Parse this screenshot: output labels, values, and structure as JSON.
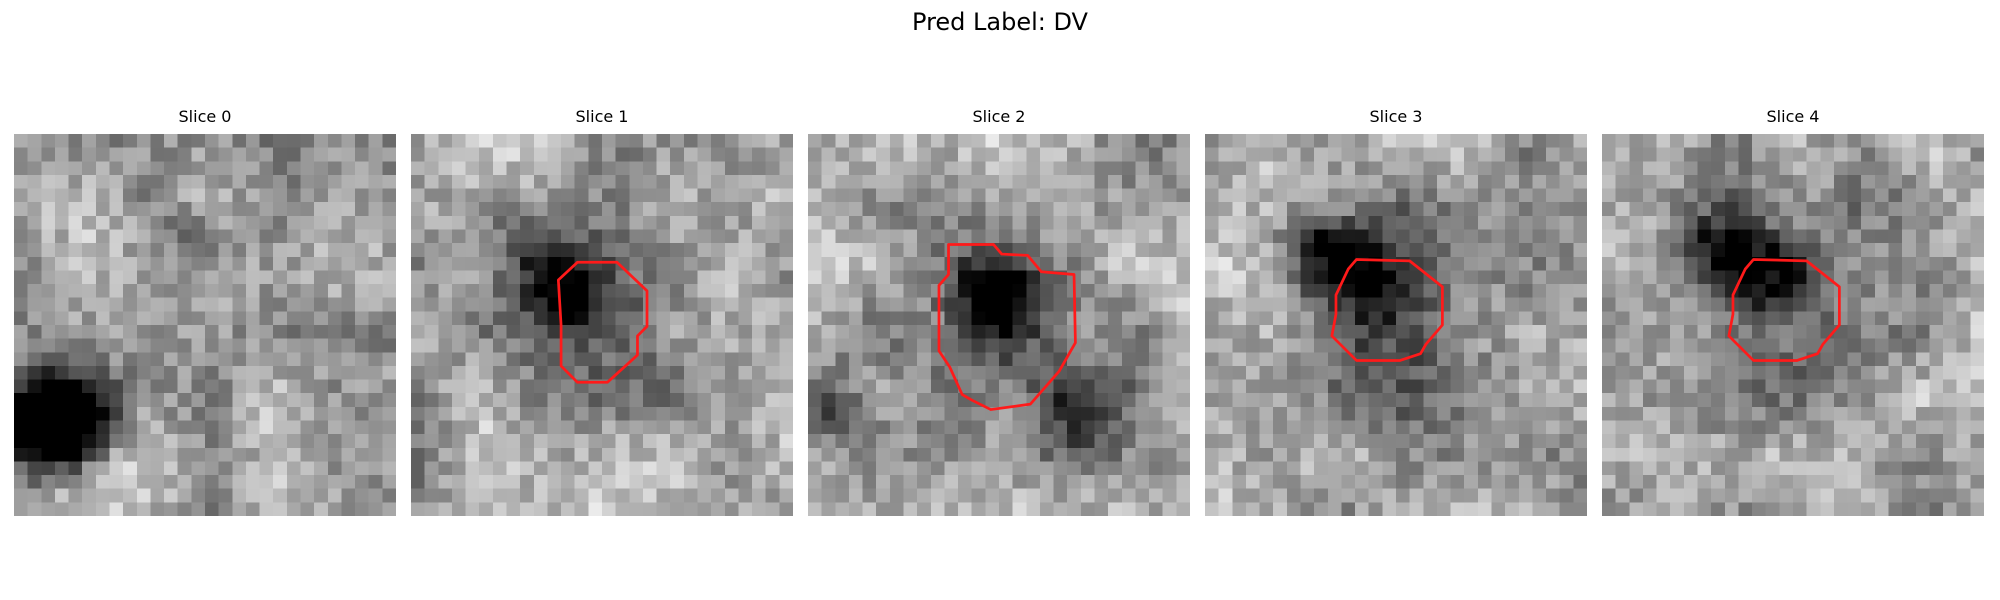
{
  "figure": {
    "title": "Pred Label: DV"
  },
  "panels": [
    {
      "title": "Slice 0",
      "has_contour": false,
      "dark_spots": [
        [
          2,
          21,
          0.9
        ],
        [
          4,
          20,
          0.5
        ],
        [
          13,
          8,
          0.25
        ]
      ]
    },
    {
      "title": "Slice 1",
      "has_contour": true,
      "dark_spots": [
        [
          11,
          11,
          0.55
        ],
        [
          8,
          8,
          0.3
        ]
      ]
    },
    {
      "title": "Slice 2",
      "has_contour": true,
      "dark_spots": [
        [
          13,
          11,
          0.6
        ],
        [
          1,
          20,
          0.3
        ],
        [
          19,
          20,
          0.3
        ]
      ]
    },
    {
      "title": "Slice 3",
      "has_contour": true,
      "dark_spots": [
        [
          8,
          8,
          0.55
        ],
        [
          12,
          10,
          0.45
        ]
      ]
    },
    {
      "title": "Slice 4",
      "has_contour": true,
      "dark_spots": [
        [
          8,
          8,
          0.55
        ],
        [
          12,
          10,
          0.45
        ]
      ]
    }
  ],
  "colors": {
    "contour": "#ff1a1a",
    "background": "#ffffff",
    "colormap": "grayscale"
  }
}
